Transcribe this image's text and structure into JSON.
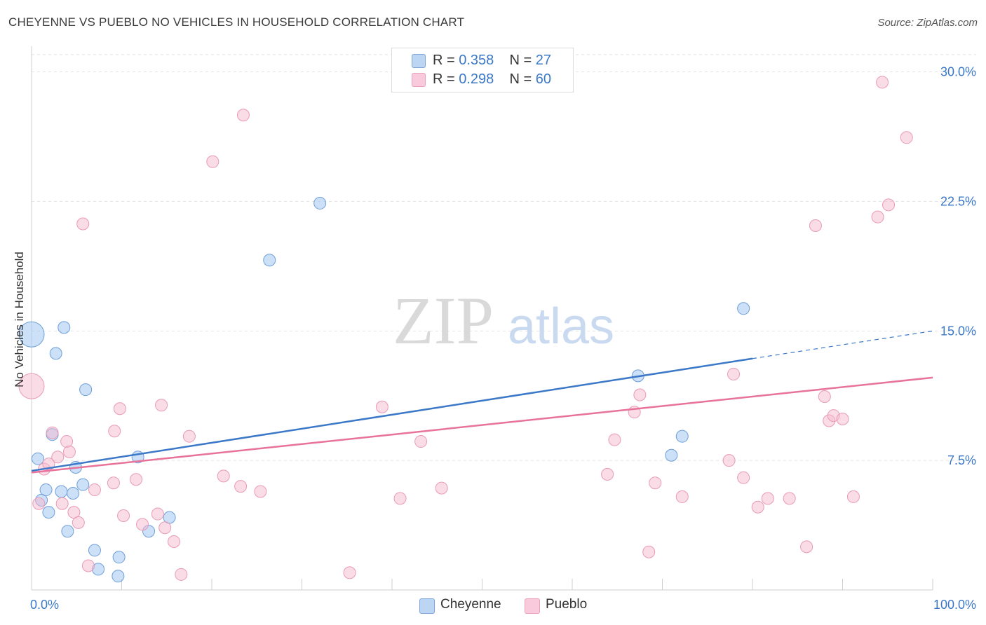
{
  "header": {
    "title": "CHEYENNE VS PUEBLO NO VEHICLES IN HOUSEHOLD CORRELATION CHART",
    "source": "Source: ZipAtlas.com"
  },
  "watermark": {
    "zip": "ZIP",
    "atlas": "atlas"
  },
  "legend": {
    "cheyenne": {
      "r_label": "R = ",
      "r_value": "0.358",
      "n_label": "N = ",
      "n_value": "27"
    },
    "pueblo": {
      "r_label": "R = ",
      "r_value": "0.298",
      "n_label": "N = ",
      "n_value": "60"
    }
  },
  "chart_data": {
    "type": "scatter",
    "title": "CHEYENNE VS PUEBLO NO VEHICLES IN HOUSEHOLD CORRELATION CHART",
    "xlabel": "",
    "ylabel": "No Vehicles in Household",
    "xlim": [
      0,
      100
    ],
    "ylim": [
      0,
      31
    ],
    "x_tick_labels": [
      "0.0%",
      "100.0%"
    ],
    "y_ticks": [
      7.5,
      15.0,
      22.5,
      30.0
    ],
    "y_tick_labels": [
      "7.5%",
      "15.0%",
      "22.5%",
      "30.0%"
    ],
    "grid": true,
    "legend_position": "top-center",
    "colors": {
      "cheyenne": "#8fb8ea",
      "cheyenne_line": "#3b78c8",
      "pueblo": "#f2a9c1",
      "pueblo_line": "#e8729a",
      "tick_label": "#3b78c8"
    },
    "series": [
      {
        "name": "Cheyenne",
        "r": 0.358,
        "n": 27,
        "trend": {
          "x0": 0,
          "y0": 6.9,
          "x1": 80,
          "y1": 13.4,
          "dash_to_x": 100,
          "dash_to_y": 15.0
        },
        "points": [
          {
            "x": 0,
            "y": 14.8,
            "big": true
          },
          {
            "x": 0.7,
            "y": 7.6
          },
          {
            "x": 1.1,
            "y": 5.2
          },
          {
            "x": 1.6,
            "y": 5.8
          },
          {
            "x": 1.9,
            "y": 4.5
          },
          {
            "x": 2.3,
            "y": 9.0
          },
          {
            "x": 2.7,
            "y": 13.7
          },
          {
            "x": 3.3,
            "y": 5.7
          },
          {
            "x": 3.6,
            "y": 15.2
          },
          {
            "x": 4.0,
            "y": 3.4
          },
          {
            "x": 4.6,
            "y": 5.6
          },
          {
            "x": 4.9,
            "y": 7.1
          },
          {
            "x": 5.7,
            "y": 6.1
          },
          {
            "x": 6.0,
            "y": 11.6
          },
          {
            "x": 7.0,
            "y": 2.3
          },
          {
            "x": 7.4,
            "y": 1.2
          },
          {
            "x": 9.6,
            "y": 0.8
          },
          {
            "x": 9.7,
            "y": 1.9
          },
          {
            "x": 11.8,
            "y": 7.7
          },
          {
            "x": 13.0,
            "y": 3.4
          },
          {
            "x": 15.3,
            "y": 4.2
          },
          {
            "x": 26.4,
            "y": 19.1
          },
          {
            "x": 32.0,
            "y": 22.4
          },
          {
            "x": 67.3,
            "y": 12.4
          },
          {
            "x": 71.0,
            "y": 7.8
          },
          {
            "x": 72.2,
            "y": 8.9
          },
          {
            "x": 79.0,
            "y": 16.3
          }
        ]
      },
      {
        "name": "Pueblo",
        "r": 0.298,
        "n": 60,
        "trend": {
          "x0": 0,
          "y0": 6.8,
          "x1": 100,
          "y1": 12.3
        },
        "points": [
          {
            "x": 0,
            "y": 11.8,
            "big": true
          },
          {
            "x": 0.8,
            "y": 5.0
          },
          {
            "x": 1.4,
            "y": 7.0
          },
          {
            "x": 1.9,
            "y": 7.3
          },
          {
            "x": 2.3,
            "y": 9.1
          },
          {
            "x": 2.9,
            "y": 7.7
          },
          {
            "x": 3.4,
            "y": 5.0
          },
          {
            "x": 3.9,
            "y": 8.6
          },
          {
            "x": 4.2,
            "y": 8.0
          },
          {
            "x": 4.7,
            "y": 4.5
          },
          {
            "x": 5.2,
            "y": 3.9
          },
          {
            "x": 5.7,
            "y": 21.2
          },
          {
            "x": 6.3,
            "y": 1.4
          },
          {
            "x": 7.0,
            "y": 5.8
          },
          {
            "x": 9.1,
            "y": 6.2
          },
          {
            "x": 9.2,
            "y": 9.2
          },
          {
            "x": 9.8,
            "y": 10.5
          },
          {
            "x": 10.2,
            "y": 4.3
          },
          {
            "x": 11.6,
            "y": 6.4
          },
          {
            "x": 12.3,
            "y": 3.8
          },
          {
            "x": 14.0,
            "y": 4.4
          },
          {
            "x": 14.4,
            "y": 10.7
          },
          {
            "x": 14.8,
            "y": 3.6
          },
          {
            "x": 15.8,
            "y": 2.8
          },
          {
            "x": 16.6,
            "y": 0.9
          },
          {
            "x": 17.5,
            "y": 8.9
          },
          {
            "x": 20.1,
            "y": 24.8
          },
          {
            "x": 21.3,
            "y": 6.6
          },
          {
            "x": 23.2,
            "y": 6.0
          },
          {
            "x": 23.5,
            "y": 27.5
          },
          {
            "x": 25.4,
            "y": 5.7
          },
          {
            "x": 35.3,
            "y": 1.0
          },
          {
            "x": 38.9,
            "y": 10.6
          },
          {
            "x": 40.9,
            "y": 5.3
          },
          {
            "x": 43.2,
            "y": 8.6
          },
          {
            "x": 45.5,
            "y": 5.9
          },
          {
            "x": 63.9,
            "y": 6.7
          },
          {
            "x": 64.7,
            "y": 8.7
          },
          {
            "x": 66.9,
            "y": 10.3
          },
          {
            "x": 67.5,
            "y": 11.3
          },
          {
            "x": 68.5,
            "y": 2.2
          },
          {
            "x": 69.2,
            "y": 6.2
          },
          {
            "x": 72.2,
            "y": 5.4
          },
          {
            "x": 77.4,
            "y": 7.5
          },
          {
            "x": 77.9,
            "y": 12.5
          },
          {
            "x": 79.0,
            "y": 6.5
          },
          {
            "x": 80.6,
            "y": 4.8
          },
          {
            "x": 81.7,
            "y": 5.3
          },
          {
            "x": 84.1,
            "y": 5.3
          },
          {
            "x": 86.0,
            "y": 2.5
          },
          {
            "x": 87.0,
            "y": 21.1
          },
          {
            "x": 88.0,
            "y": 11.2
          },
          {
            "x": 88.5,
            "y": 9.8
          },
          {
            "x": 89.0,
            "y": 10.1
          },
          {
            "x": 90.0,
            "y": 9.9
          },
          {
            "x": 91.2,
            "y": 5.4
          },
          {
            "x": 93.9,
            "y": 21.6
          },
          {
            "x": 94.4,
            "y": 29.4
          },
          {
            "x": 95.1,
            "y": 22.3
          },
          {
            "x": 97.1,
            "y": 26.2
          }
        ]
      }
    ]
  },
  "bottom_legend": [
    {
      "name": "Cheyenne"
    },
    {
      "name": "Pueblo"
    }
  ]
}
